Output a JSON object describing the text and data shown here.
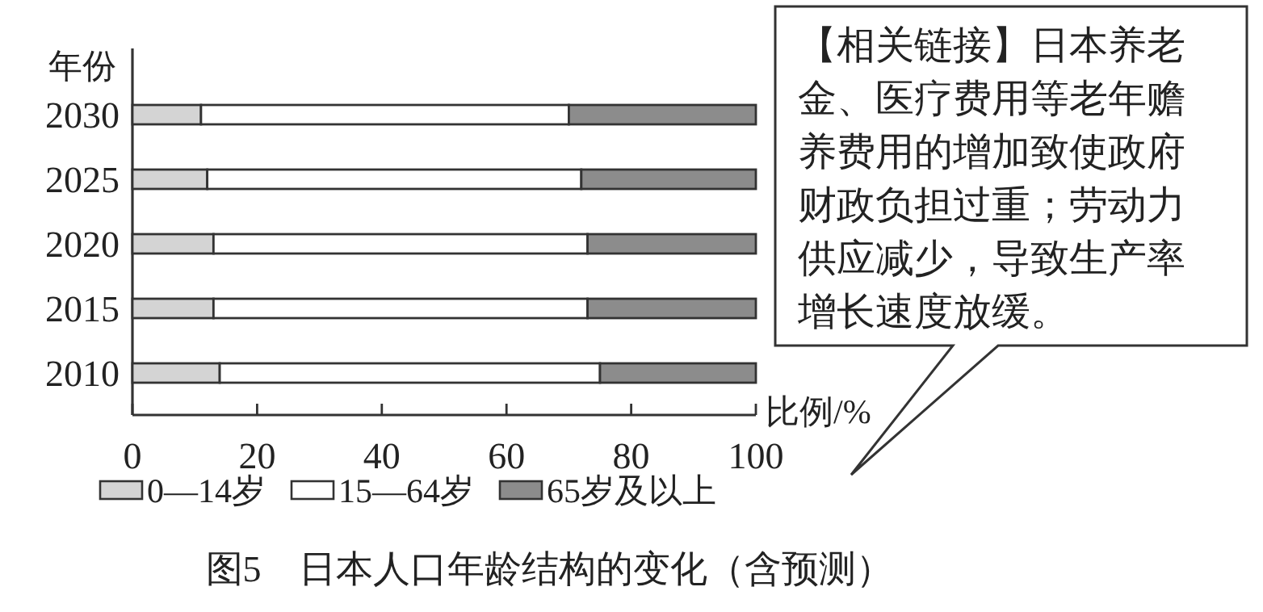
{
  "chart_data": {
    "type": "bar",
    "orientation": "horizontal",
    "stacked": true,
    "title": "图5　日本人口年龄结构的变化（含预测）",
    "xlabel": "比例/%",
    "ylabel": "年份",
    "categories": [
      "2030",
      "2025",
      "2020",
      "2015",
      "2010"
    ],
    "series": [
      {
        "name": "0—14岁",
        "color": "#d4d4d4",
        "values": [
          11,
          12,
          13,
          13,
          14
        ]
      },
      {
        "name": "15—64岁",
        "color": "#ffffff",
        "values": [
          59,
          60,
          60,
          60,
          61
        ]
      },
      {
        "name": "65岁及以上",
        "color": "#8c8c8c",
        "values": [
          30,
          28,
          27,
          27,
          25
        ]
      }
    ],
    "xlim": [
      0,
      100
    ],
    "xticks": [
      0,
      20,
      40,
      60,
      80,
      100
    ],
    "legend": "bottom",
    "annotations": [
      "【相关链接】日本养老金、医疗费用等老年赡养费用的增加致使政府财政负担过重；劳动力供应减少，导致生产率增长速度放缓。"
    ]
  }
}
